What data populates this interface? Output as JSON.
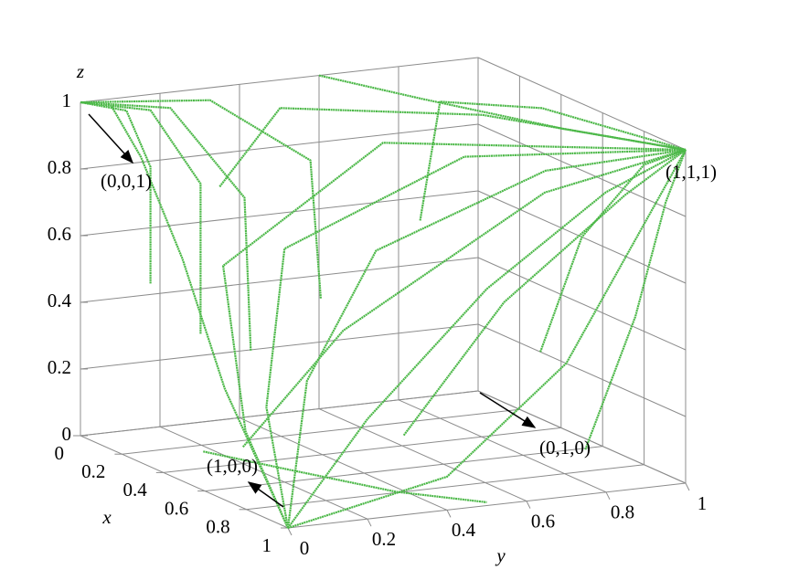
{
  "chart_data": {
    "type": "line3d",
    "color": "#4cb848",
    "xlabel": "x",
    "ylabel": "y",
    "zlabel": "z",
    "xlim": [
      0,
      1
    ],
    "ylim": [
      0,
      1
    ],
    "zlim": [
      0,
      1
    ],
    "xticks": [
      0,
      0.2,
      0.4,
      0.6,
      0.8,
      1
    ],
    "yticks": [
      0,
      0.2,
      0.4,
      0.6,
      0.8,
      1
    ],
    "zticks": [
      0,
      0.2,
      0.4,
      0.6,
      0.8,
      1
    ],
    "grid": true,
    "annotations": [
      "(0,0,1)",
      "(1,1,1)",
      "(0,1,0)",
      "(1,0,0)"
    ],
    "series": [
      {
        "x": [
          1,
          1,
          1,
          1,
          1
        ],
        "y": [
          0,
          0.2,
          0.5,
          0.8,
          1
        ],
        "z": [
          0,
          0.3,
          0.65,
          0.9,
          1
        ]
      },
      {
        "x": [
          1,
          0.9,
          0.85,
          0.9,
          1
        ],
        "y": [
          0,
          0.1,
          0.3,
          0.7,
          1
        ],
        "z": [
          0,
          0.4,
          0.75,
          0.95,
          1
        ]
      },
      {
        "x": [
          1,
          0.8,
          0.6,
          0.7,
          1
        ],
        "y": [
          0,
          0.05,
          0.2,
          0.6,
          1
        ],
        "z": [
          0,
          0.3,
          0.7,
          0.95,
          1
        ]
      },
      {
        "x": [
          1,
          0.7,
          0.4,
          0.5,
          1
        ],
        "y": [
          0,
          0.05,
          0.15,
          0.5,
          1
        ],
        "z": [
          0,
          0.2,
          0.6,
          0.95,
          1
        ]
      },
      {
        "x": [
          1,
          1,
          1,
          1,
          1
        ],
        "y": [
          0,
          0.4,
          0.7,
          0.9,
          1
        ],
        "z": [
          0,
          0.1,
          0.4,
          0.8,
          1
        ]
      },
      {
        "x": [
          1,
          0.6,
          0.3,
          0.1,
          0.05
        ],
        "y": [
          0,
          0.05,
          0.1,
          0.1,
          0.05
        ],
        "z": [
          0,
          0.3,
          0.6,
          0.85,
          1
        ]
      },
      {
        "x": [
          0.05,
          0.05,
          0.03,
          0
        ],
        "y": [
          0.15,
          0.15,
          0.1,
          0
        ],
        "z": [
          0.45,
          0.8,
          0.97,
          1
        ]
      },
      {
        "x": [
          0.1,
          0.1,
          0.05,
          0
        ],
        "y": [
          0.25,
          0.25,
          0.15,
          0
        ],
        "z": [
          0.3,
          0.75,
          0.97,
          1
        ]
      },
      {
        "x": [
          0.15,
          0.12,
          0.05,
          0
        ],
        "y": [
          0.35,
          0.35,
          0.2,
          0
        ],
        "z": [
          0.25,
          0.7,
          0.97,
          1
        ]
      },
      {
        "x": [
          0.2,
          0.15,
          0.05,
          0
        ],
        "y": [
          0.5,
          0.5,
          0.3,
          0
        ],
        "z": [
          0.4,
          0.8,
          0.98,
          1
        ]
      },
      {
        "x": [
          0,
          0.3,
          0.7,
          1
        ],
        "y": [
          0.6,
          0.7,
          0.85,
          1
        ],
        "z": [
          1,
          1,
          1,
          1
        ]
      },
      {
        "x": [
          0.2,
          0.2,
          0.5,
          1
        ],
        "y": [
          0.75,
          0.8,
          0.9,
          1
        ],
        "z": [
          0.6,
          0.95,
          1,
          1
        ]
      },
      {
        "x": [
          0,
          0.1,
          0.5,
          1
        ],
        "y": [
          0.35,
          0.45,
          0.75,
          1
        ],
        "z": [
          0.7,
          0.95,
          1,
          1
        ]
      },
      {
        "x": [
          0.3,
          0.5,
          0.8,
          1
        ],
        "y": [
          1,
          1,
          1,
          1
        ],
        "z": [
          0.2,
          0.6,
          0.9,
          1
        ]
      },
      {
        "x": [
          0.9,
          0.95,
          1,
          1
        ],
        "y": [
          0.8,
          0.9,
          0.95,
          1
        ],
        "z": [
          0.1,
          0.5,
          0.85,
          1
        ]
      },
      {
        "x": [
          0.6,
          0.7,
          0.9,
          1
        ],
        "y": [
          0.5,
          0.7,
          0.9,
          1
        ],
        "z": [
          0.1,
          0.5,
          0.85,
          1
        ]
      },
      {
        "x": [
          0.4,
          0.5,
          0.8,
          1
        ],
        "y": [
          0.2,
          0.4,
          0.75,
          1
        ],
        "z": [
          0.05,
          0.4,
          0.85,
          1
        ]
      },
      {
        "x": [
          0.4,
          0.6,
          0.85,
          1
        ],
        "y": [
          0.1,
          0.2,
          0.35,
          0.5
        ],
        "z": [
          0.05,
          0.04,
          0.02,
          0.01
        ]
      }
    ]
  }
}
